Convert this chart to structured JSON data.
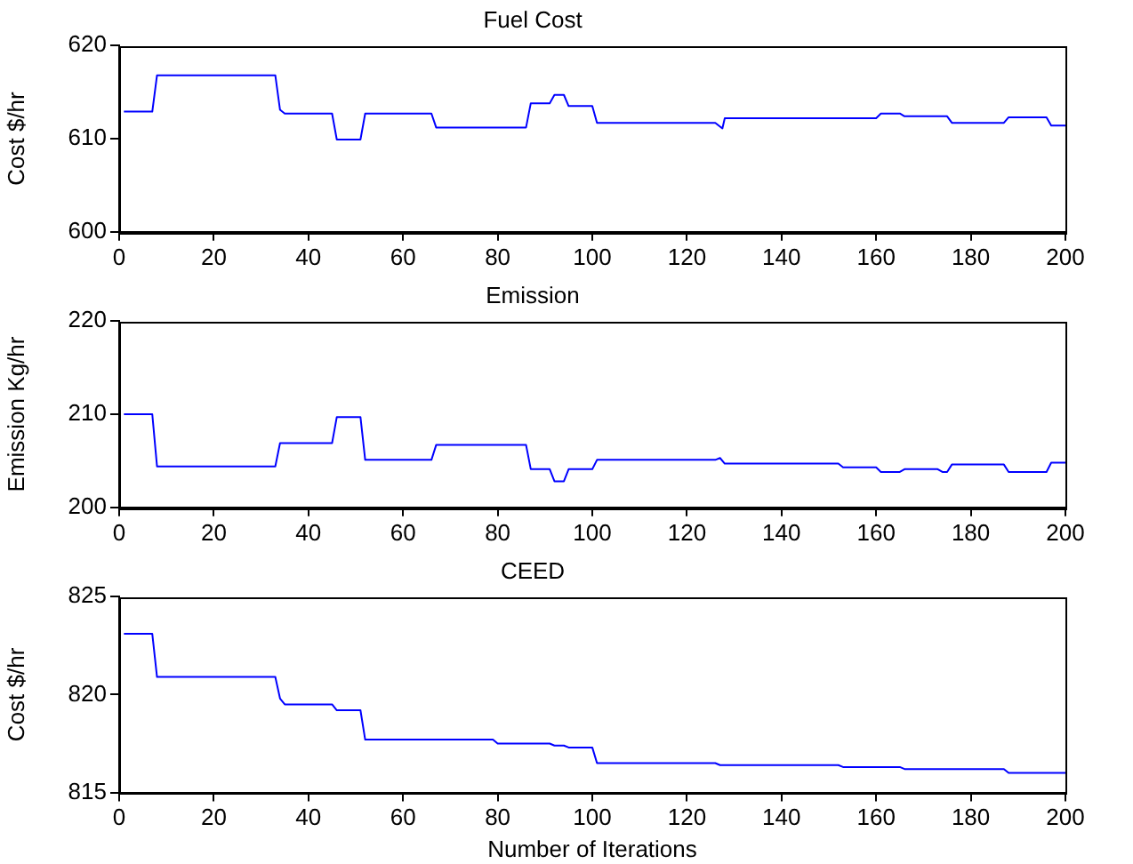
{
  "chart_data": [
    {
      "type": "line",
      "title": "Fuel Cost",
      "ylabel": "Cost $/hr",
      "x": [
        1,
        7,
        8,
        33,
        34,
        35,
        45,
        46,
        51,
        52,
        66,
        67,
        86,
        87,
        91,
        92,
        94,
        95,
        100,
        101,
        126,
        127.5,
        128,
        160,
        161,
        165,
        166,
        175,
        176,
        187,
        188,
        196,
        197,
        200
      ],
      "series": [
        {
          "color": "#0000ff",
          "values": [
            612.9,
            612.9,
            616.8,
            616.8,
            613.1,
            612.7,
            612.7,
            609.9,
            609.9,
            612.7,
            612.7,
            611.2,
            611.2,
            613.8,
            613.8,
            614.7,
            614.7,
            613.5,
            613.5,
            611.7,
            611.7,
            611.1,
            612.2,
            612.2,
            612.7,
            612.7,
            612.4,
            612.4,
            611.7,
            611.7,
            612.3,
            612.3,
            611.4,
            611.4
          ]
        }
      ],
      "xlim": [
        0,
        200
      ],
      "xticks": [
        0,
        20,
        40,
        60,
        80,
        100,
        120,
        140,
        160,
        180,
        200
      ],
      "ylim": [
        600,
        620
      ],
      "yticks": [
        600,
        610,
        620
      ],
      "grid": false,
      "legend": false
    },
    {
      "type": "line",
      "title": "Emission",
      "ylabel": "Emission Kg/hr",
      "x": [
        1,
        7,
        8,
        33,
        34,
        45,
        46,
        51,
        52,
        66,
        67,
        86,
        87,
        91,
        92,
        94,
        95,
        100,
        101,
        126,
        127,
        128,
        152,
        153,
        160,
        161,
        165,
        166,
        173,
        174,
        175,
        176,
        187,
        188,
        196,
        197,
        200
      ],
      "series": [
        {
          "color": "#0000ff",
          "values": [
            210,
            210,
            204.4,
            204.4,
            206.9,
            206.9,
            209.7,
            209.7,
            205.1,
            205.1,
            206.7,
            206.7,
            204.1,
            204.1,
            202.8,
            202.8,
            204.1,
            204.1,
            205.1,
            205.1,
            205.3,
            204.7,
            204.7,
            204.3,
            204.3,
            203.8,
            203.8,
            204.1,
            204.1,
            203.8,
            203.8,
            204.6,
            204.6,
            203.8,
            203.8,
            204.8,
            204.8
          ]
        }
      ],
      "xlim": [
        0,
        200
      ],
      "xticks": [
        0,
        20,
        40,
        60,
        80,
        100,
        120,
        140,
        160,
        180,
        200
      ],
      "ylim": [
        200,
        220
      ],
      "yticks": [
        200,
        210,
        220
      ],
      "grid": false,
      "legend": false
    },
    {
      "type": "line",
      "title": "CEED",
      "xlabel": "Number of Iterations",
      "ylabel": "Cost $/hr",
      "x": [
        1,
        7,
        8,
        33,
        34,
        35,
        45,
        46,
        51,
        52,
        79,
        80,
        91,
        92,
        94,
        95,
        100,
        101,
        126,
        127,
        152,
        153,
        165,
        166,
        187,
        188,
        200
      ],
      "series": [
        {
          "color": "#0000ff",
          "values": [
            823.1,
            823.1,
            820.9,
            820.9,
            819.8,
            819.5,
            819.5,
            819.2,
            819.2,
            817.7,
            817.7,
            817.5,
            817.5,
            817.4,
            817.4,
            817.3,
            817.3,
            816.5,
            816.5,
            816.4,
            816.4,
            816.3,
            816.3,
            816.2,
            816.2,
            816,
            816
          ]
        }
      ],
      "xlim": [
        0,
        200
      ],
      "xticks": [
        0,
        20,
        40,
        60,
        80,
        100,
        120,
        140,
        160,
        180,
        200
      ],
      "ylim": [
        815,
        825
      ],
      "yticks": [
        815,
        820,
        825
      ],
      "grid": false,
      "legend": false
    }
  ]
}
